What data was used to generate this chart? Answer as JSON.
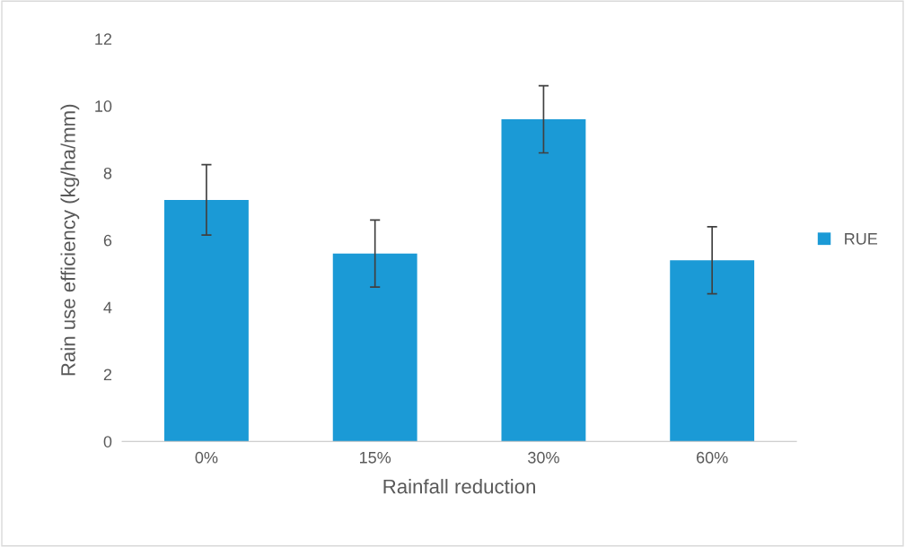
{
  "chart_data": {
    "type": "bar",
    "xlabel": "Rainfall reduction",
    "ylabel": "Rain use efficiency (kg/ha/mm)",
    "categories": [
      "0%",
      "15%",
      "30%",
      "60%"
    ],
    "series": [
      {
        "name": "RUE",
        "color": "#1b9ad6",
        "values": [
          7.2,
          5.6,
          9.6,
          5.4
        ],
        "errors": [
          1.05,
          1.0,
          1.0,
          1.0
        ]
      }
    ],
    "ylim": [
      0,
      12
    ],
    "yticks": [
      0,
      2,
      4,
      6,
      8,
      10,
      12
    ],
    "grid": false,
    "legend": "right"
  }
}
